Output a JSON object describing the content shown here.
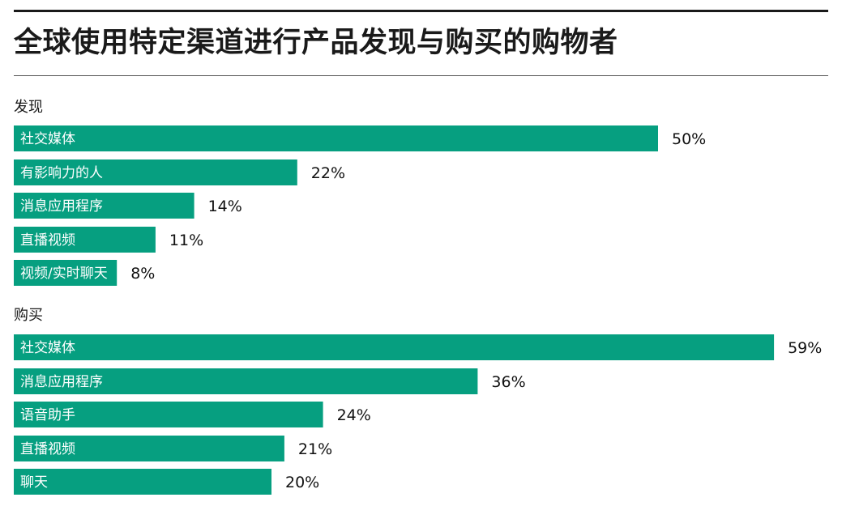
{
  "title": "全球使用特定渠道进行产品发现与购买的购物者",
  "colors": {
    "bar": "#069f80",
    "text": "#1a1a1a",
    "rule": "#1a1a1a"
  },
  "chart_data": {
    "type": "bar",
    "orientation": "horizontal",
    "unit": "%",
    "xlim": [
      0,
      59
    ],
    "grid": false,
    "legend": "none",
    "groups": [
      {
        "name": "发现",
        "categories": [
          "社交媒体",
          "有影响力的人",
          "消息应用程序",
          "直播视频",
          "视频/实时聊天"
        ],
        "values": [
          50,
          22,
          14,
          11,
          8
        ],
        "labels": [
          "50%",
          "22%",
          "14%",
          "11%",
          "8%"
        ]
      },
      {
        "name": "购买",
        "categories": [
          "社交媒体",
          "消息应用程序",
          "语音助手",
          "直播视频",
          "聊天"
        ],
        "values": [
          59,
          36,
          24,
          21,
          20
        ],
        "labels": [
          "59%",
          "36%",
          "24%",
          "21%",
          "20%"
        ]
      }
    ]
  }
}
